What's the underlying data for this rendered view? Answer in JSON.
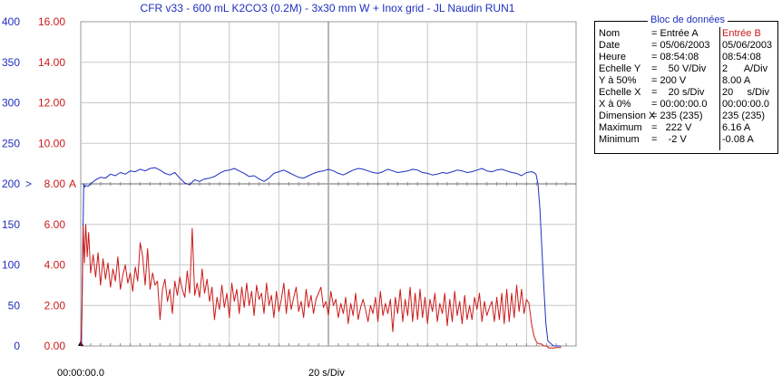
{
  "chart_data": {
    "type": "line",
    "title": "CFR v33 - 600 mL K2CO3 (0.2M) - 3x30 mm W + Inox grid - JL Naudin RUN1",
    "x_start_label": "00:00:00.0",
    "x_scale_label": "20 s/Div",
    "x_unit": "s",
    "xlim": [
      0,
      200
    ],
    "left_axis": {
      "ticks": [
        "0",
        "50",
        "100",
        "150",
        "200",
        "250",
        "300",
        "350",
        "400"
      ],
      "ylim": [
        0,
        400
      ],
      "marker": ">"
    },
    "right_axis": {
      "ticks": [
        "0.00",
        "2.00",
        "4.00",
        "6.00",
        "8.00",
        "10.00",
        "12.00",
        "14.00",
        "16.00"
      ],
      "ylim": [
        0,
        16
      ],
      "marker": "A"
    },
    "grid": true,
    "series": [
      {
        "name": "Entrée A",
        "unit": "V",
        "color": "#1f2fbf",
        "x": [
          0,
          0.3,
          0.8,
          1.2,
          1.6,
          2,
          3,
          4,
          6,
          8,
          10,
          12,
          14,
          16,
          18,
          20,
          22,
          24,
          26,
          28,
          30,
          32,
          34,
          36,
          38,
          40,
          42,
          44,
          46,
          48,
          50,
          52,
          54,
          56,
          58,
          60,
          62,
          64,
          66,
          68,
          70,
          72,
          74,
          76,
          78,
          80,
          82,
          84,
          86,
          88,
          90,
          92,
          94,
          96,
          98,
          100,
          102,
          104,
          106,
          108,
          110,
          112,
          114,
          116,
          118,
          120,
          122,
          124,
          126,
          128,
          130,
          132,
          134,
          136,
          138,
          140,
          142,
          144,
          146,
          148,
          150,
          152,
          154,
          156,
          158,
          160,
          162,
          164,
          166,
          168,
          170,
          172,
          174,
          176,
          178,
          180,
          182,
          183,
          183.8,
          184.6,
          185.4,
          186.2,
          187,
          187.8,
          188.6,
          189.4,
          190.2,
          191,
          192,
          193,
          194
        ],
        "values": [
          0,
          2,
          120,
          200,
          196,
          198,
          197,
          200,
          205,
          208,
          207,
          212,
          210,
          214,
          212,
          216,
          215,
          218,
          216,
          219,
          220,
          217,
          213,
          211,
          214,
          207,
          201,
          199,
          205,
          203,
          206,
          207,
          209,
          213,
          216,
          217,
          219,
          216,
          213,
          209,
          210,
          206,
          203,
          207,
          213,
          215,
          217,
          214,
          211,
          208,
          207,
          210,
          213,
          215,
          216,
          218,
          216,
          213,
          211,
          214,
          217,
          219,
          218,
          216,
          214,
          213,
          215,
          218,
          216,
          214,
          215,
          216,
          218,
          217,
          214,
          213,
          211,
          212,
          214,
          213,
          215,
          217,
          216,
          214,
          215,
          217,
          219,
          216,
          215,
          217,
          218,
          216,
          214,
          213,
          210,
          214,
          215,
          214,
          212,
          200,
          170,
          120,
          72,
          28,
          6,
          4,
          2,
          0,
          0,
          0,
          0
        ]
      },
      {
        "name": "Entrée B",
        "unit": "A",
        "color": "#cc1a1a",
        "x": [
          0,
          0.5,
          1,
          1.5,
          2,
          2.6,
          3.2,
          4,
          5,
          6,
          7,
          8,
          9,
          10,
          11,
          12,
          13,
          14,
          15,
          16,
          17,
          18,
          19,
          20,
          21,
          22,
          23,
          24,
          25,
          26,
          27,
          28,
          29,
          30,
          31,
          32,
          33,
          34,
          35,
          36,
          37,
          38,
          39,
          40,
          41,
          42,
          43,
          44,
          45,
          46,
          47,
          48,
          49,
          50,
          51,
          52,
          53,
          54,
          55,
          56,
          57,
          58,
          59,
          60,
          61,
          62,
          63,
          64,
          65,
          66,
          67,
          68,
          69,
          70,
          71,
          72,
          73,
          74,
          75,
          76,
          77,
          78,
          79,
          80,
          81,
          82,
          83,
          84,
          85,
          86,
          87,
          88,
          89,
          90,
          91,
          92,
          93,
          94,
          95,
          96,
          97,
          98,
          99,
          100,
          101,
          102,
          103,
          104,
          105,
          106,
          107,
          108,
          109,
          110,
          111,
          112,
          113,
          114,
          115,
          116,
          117,
          118,
          119,
          120,
          121,
          122,
          123,
          124,
          125,
          126,
          127,
          128,
          129,
          130,
          131,
          132,
          133,
          134,
          135,
          136,
          137,
          138,
          139,
          140,
          141,
          142,
          143,
          144,
          145,
          146,
          147,
          148,
          149,
          150,
          151,
          152,
          153,
          154,
          155,
          156,
          157,
          158,
          159,
          160,
          161,
          162,
          163,
          164,
          165,
          166,
          167,
          168,
          169,
          170,
          171,
          172,
          173,
          174,
          175,
          176,
          177,
          178,
          179,
          180,
          181,
          182,
          183,
          184,
          185,
          186,
          187,
          188,
          189,
          190,
          191,
          192,
          193,
          194
        ],
        "values": [
          0,
          1.6,
          5.9,
          4.1,
          6.0,
          4.4,
          5.6,
          3.6,
          4.5,
          3.4,
          4.6,
          3.0,
          4.3,
          3.3,
          4.1,
          2.9,
          3.8,
          3.2,
          4.4,
          2.8,
          3.5,
          4.0,
          3.1,
          3.6,
          2.7,
          3.9,
          3.2,
          5.1,
          4.4,
          3.0,
          4.8,
          2.8,
          3.6,
          3.0,
          3.2,
          1.3,
          2.8,
          3.3,
          2.2,
          2.8,
          1.6,
          3.2,
          2.5,
          3.4,
          2.8,
          2.4,
          3.7,
          2.6,
          5.8,
          2.5,
          3.1,
          2.4,
          3.8,
          2.6,
          3.3,
          2.2,
          2.9,
          1.3,
          2.4,
          1.8,
          3.0,
          1.9,
          2.6,
          1.4,
          3.1,
          2.2,
          2.8,
          1.6,
          2.9,
          1.9,
          3.1,
          2.0,
          2.7,
          1.5,
          3.0,
          2.3,
          2.6,
          1.6,
          3.1,
          2.0,
          2.5,
          1.4,
          2.7,
          1.7,
          2.3,
          3.1,
          1.6,
          2.8,
          1.8,
          2.4,
          2.9,
          1.7,
          2.2,
          1.4,
          2.8,
          1.9,
          2.5,
          1.6,
          2.3,
          2.6,
          2.9,
          1.9,
          2.2,
          1.5,
          2.7,
          2.0,
          2.3,
          1.4,
          2.1,
          1.6,
          2.4,
          1.1,
          2.1,
          1.5,
          2.6,
          1.3,
          1.9,
          2.3,
          1.8,
          1.2,
          2.0,
          1.6,
          2.4,
          1.2,
          2.7,
          1.5,
          2.1,
          1.6,
          2.3,
          0.7,
          2.4,
          1.6,
          2.8,
          1.2,
          2.3,
          1.5,
          2.9,
          1.2,
          2.6,
          1.3,
          2.8,
          1.4,
          2.4,
          1.1,
          2.3,
          1.7,
          2.6,
          1.2,
          2.1,
          1.6,
          2.6,
          1.0,
          2.3,
          1.2,
          2.7,
          1.5,
          2.2,
          1.1,
          2.5,
          1.3,
          2.0,
          1.3,
          2.4,
          1.8,
          2.6,
          1.2,
          2.2,
          1.5,
          1.9,
          2.2,
          1.2,
          2.4,
          1.3,
          2.6,
          1.1,
          2.8,
          1.2,
          2.6,
          1.4,
          3.0,
          1.7,
          2.8,
          1.6,
          2.3,
          2.1,
          1.1,
          0.5,
          0.2,
          0.1,
          0.1,
          0.0,
          0.0,
          -0.1,
          -0.1,
          -0.1,
          -0.08,
          -0.08,
          -0.08
        ]
      }
    ]
  },
  "data_block": {
    "title": "Bloc de données",
    "rows": [
      {
        "label": "Nom",
        "a": "= Entrée A",
        "b": "Entrée B"
      },
      {
        "label": "Date",
        "a": "= 05/06/2003",
        "b": "05/06/2003"
      },
      {
        "label": "Heure",
        "a": "= 08:54:08",
        "b": "08:54:08"
      },
      {
        "label": "Echelle Y",
        "a": "=    50 V/Div",
        "b": "2      A/Div"
      },
      {
        "label": "Y à 50%",
        "a": "= 200 V",
        "b": "8.00 A"
      },
      {
        "label": "Echelle X",
        "a": "=    20 s/Div",
        "b": "20     s/Div"
      },
      {
        "label": "X à 0%",
        "a": "= 00:00:00.0",
        "b": "00:00:00.0"
      },
      {
        "label": "Dimension X",
        "a": "= 235 (235)",
        "b": "235 (235)"
      },
      {
        "label": "Maximum",
        "a": "=   222 V",
        "b": "6.16 A"
      },
      {
        "label": "Minimum",
        "a": "=    -2 V",
        "b": "-0.08 A"
      }
    ]
  }
}
